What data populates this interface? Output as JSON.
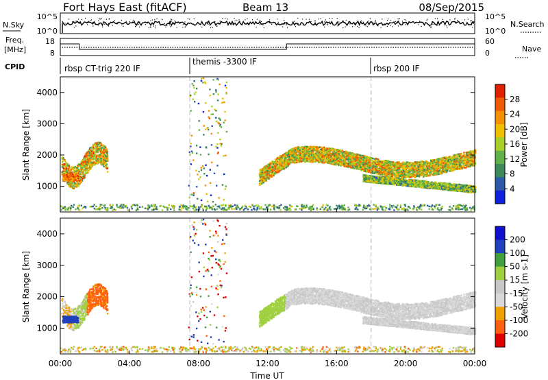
{
  "header": {
    "station": "Fort Hays East (fitACF)",
    "beam": "Beam 13",
    "date": "08/Sep/2015"
  },
  "summary_panels": {
    "nsky_label": "N.Sky",
    "nsearch_label": "N.Search",
    "freq_label_line1": "Freq.",
    "freq_label_line2": "[MHz]",
    "nave_label": "Nave",
    "cpid_label": "CPID",
    "noise_ticks": [
      "10^5",
      "10^0"
    ],
    "freq_ticks": [
      "18",
      "8"
    ],
    "nave_ticks": [
      "60",
      "0"
    ]
  },
  "cpid_segments": [
    {
      "label": "rbsp CT-trig 220 IF",
      "start_hour": 0.0
    },
    {
      "label": "themis -3300 IF",
      "start_hour": 7.5
    },
    {
      "label": "rbsp 200 IF",
      "start_hour": 18.0
    }
  ],
  "colors": {
    "power": [
      "#1020e0",
      "#2d5aa8",
      "#3c8a5a",
      "#62b04a",
      "#a8d028",
      "#f0c000",
      "#f59000",
      "#f05a00",
      "#e02000"
    ],
    "velocity": [
      "#e00000",
      "#ff6010",
      "#f0a000",
      "#d8d8d8",
      "#c8c8c8",
      "#a0d040",
      "#40a040",
      "#2040c0",
      "#1010d0"
    ],
    "dashed_line": "#b8b8b8"
  },
  "chart_data": {
    "type": "heatmap",
    "x_axis": {
      "label": "Time UT",
      "range_hours": [
        0,
        24
      ],
      "ticks": [
        "00:00",
        "04:00",
        "08:00",
        "12:00",
        "16:00",
        "20:00",
        "00:00"
      ]
    },
    "y_axis": {
      "label": "Slant Range [km]",
      "range_km": [
        180,
        4500
      ],
      "ticks": [
        1000,
        2000,
        3000,
        4000
      ]
    },
    "cpid_change_hours": [
      7.5,
      18.0
    ],
    "panels": [
      {
        "name": "power",
        "colorbar_title": "Power [dB]",
        "colorbar_ticks": [
          "28",
          "24",
          "20",
          "16",
          "12",
          "8",
          "4"
        ],
        "value_range": [
          0,
          30
        ]
      },
      {
        "name": "velocity",
        "colorbar_title": "Velocity [m s-1]",
        "colorbar_ticks": [
          "200",
          "100",
          "50",
          "15",
          "-15",
          "-50",
          "-100",
          "-200"
        ],
        "value_range": [
          -200,
          200
        ]
      }
    ]
  }
}
